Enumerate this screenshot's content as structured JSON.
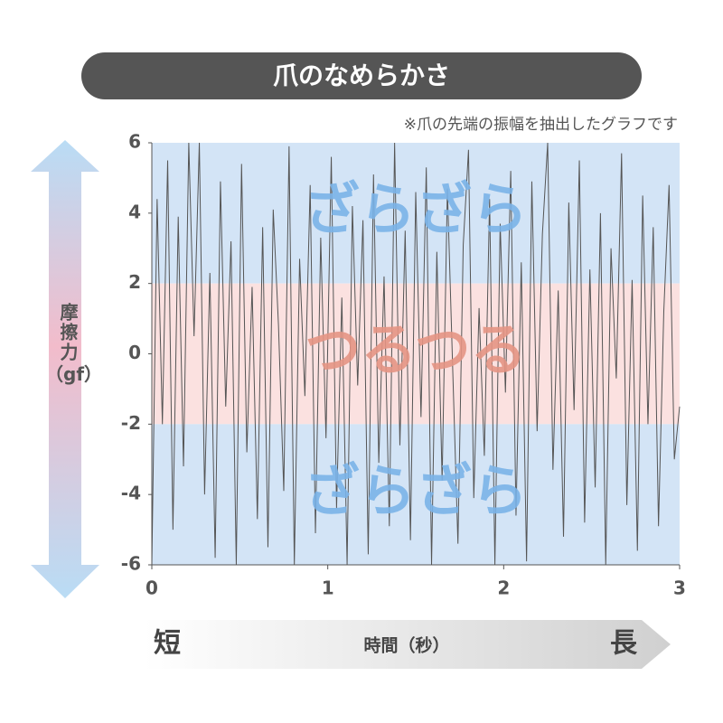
{
  "chart_data": {
    "type": "line",
    "title": "爪のなめらかさ",
    "note": "※爪の先端の振幅を抽出したグラフです",
    "ylabel": "摩擦力",
    "yunit": "（gf）",
    "xlabel": "時間（秒）",
    "x_start_label": "短",
    "x_end_label": "長",
    "xlim": [
      0,
      3
    ],
    "xticks": [
      0,
      1,
      2,
      3
    ],
    "ylim": [
      -6,
      6
    ],
    "yticks": [
      -6,
      -4,
      -2,
      0,
      2,
      4,
      6
    ],
    "bands": [
      {
        "from": 2,
        "to": 6,
        "label": "ざらざら",
        "color": "#d3e4f6",
        "label_color": "#7ab3e8"
      },
      {
        "from": -2,
        "to": 2,
        "label": "つるつる",
        "color": "#fbe1e0",
        "label_color": "#e49584"
      },
      {
        "from": -6,
        "to": -2,
        "label": "ざらざら",
        "color": "#d3e4f6",
        "label_color": "#7ab3e8"
      }
    ],
    "series": [
      {
        "color": "#555555",
        "x": [
          0,
          0.03,
          0.06,
          0.09,
          0.12,
          0.15,
          0.18,
          0.21,
          0.24,
          0.27,
          0.3,
          0.33,
          0.36,
          0.39,
          0.42,
          0.45,
          0.48,
          0.51,
          0.54,
          0.57,
          0.6,
          0.63,
          0.66,
          0.69,
          0.72,
          0.75,
          0.78,
          0.81,
          0.84,
          0.87,
          0.9,
          0.93,
          0.96,
          0.99,
          1.02,
          1.05,
          1.08,
          1.11,
          1.14,
          1.17,
          1.2,
          1.23,
          1.26,
          1.29,
          1.32,
          1.35,
          1.38,
          1.41,
          1.44,
          1.47,
          1.5,
          1.53,
          1.56,
          1.59,
          1.62,
          1.65,
          1.68,
          1.71,
          1.74,
          1.77,
          1.8,
          1.83,
          1.86,
          1.89,
          1.92,
          1.95,
          1.98,
          2.01,
          2.04,
          2.07,
          2.1,
          2.13,
          2.16,
          2.19,
          2.22,
          2.25,
          2.28,
          2.31,
          2.34,
          2.37,
          2.4,
          2.43,
          2.46,
          2.49,
          2.52,
          2.55,
          2.58,
          2.61,
          2.64,
          2.67,
          2.7,
          2.73,
          2.76,
          2.79,
          2.82,
          2.85,
          2.88,
          2.91,
          2.94,
          2.97,
          3
        ],
        "values": [
          -6,
          4.4,
          -2,
          5.5,
          -5,
          3.9,
          -3.2,
          6,
          0.5,
          6,
          -4,
          2.3,
          -5.8,
          4.9,
          -1.5,
          3.2,
          -6,
          5.4,
          -2.8,
          1.9,
          -4.7,
          3.6,
          -5.5,
          4.1,
          0.8,
          -3.9,
          5.9,
          -6,
          2.7,
          -1.2,
          4.8,
          -5.1,
          3.3,
          -2.4,
          5.6,
          -4.4,
          1.6,
          -6,
          4.2,
          -0.9,
          3.8,
          -5.7,
          5.1,
          -3.1,
          2.2,
          -4.9,
          6,
          -2.6,
          3.5,
          -5.3,
          4.6,
          -1.8,
          5.3,
          -6,
          2.9,
          -3.6,
          4.7,
          -0.4,
          -5.4,
          3.1,
          5.8,
          -4.1,
          1.3,
          -2.9,
          4.4,
          -6,
          3.7,
          -1.1,
          5.2,
          -4.6,
          2.6,
          -5.9,
          4.9,
          -2.2,
          3.4,
          6,
          -3.3,
          1.8,
          -5.2,
          4.3,
          -1.6,
          5.5,
          -4.8,
          2.4,
          -3.8,
          4.0,
          -6,
          3.0,
          -0.7,
          5.7,
          -4.3,
          2.1,
          -5.6,
          4.5,
          -2.0,
          3.6,
          -4.9,
          1.2,
          4.8,
          -3.0,
          -1.5
        ]
      }
    ]
  }
}
